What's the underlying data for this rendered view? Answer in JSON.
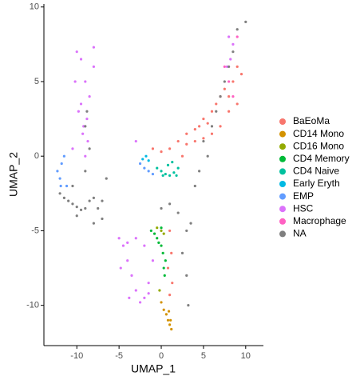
{
  "chart_data": {
    "type": "scatter",
    "xlabel": "UMAP_1",
    "ylabel": "UMAP_2",
    "xlim": [
      -13.9,
      12.1
    ],
    "ylim": [
      -12.7,
      10.2
    ],
    "xticks": [
      -10,
      -5,
      0,
      5,
      10
    ],
    "yticks": [
      -10,
      -5,
      0,
      5,
      10
    ],
    "legend": "right",
    "series": [
      {
        "name": "BaEoMa",
        "color": "#F8766D",
        "x": [
          -1,
          0,
          1,
          2,
          3,
          4,
          4.5,
          5,
          5.5,
          6,
          6.5,
          7,
          7.5,
          8,
          8.5,
          9,
          9.5,
          3,
          4,
          5,
          6,
          7,
          1,
          1.2,
          0.8,
          1.3,
          1,
          9,
          8,
          2.5
        ],
        "values": [
          0.5,
          0.3,
          0.5,
          1,
          1.5,
          1.8,
          2,
          2.5,
          2.2,
          3,
          3.5,
          4,
          4.5,
          4,
          5,
          6,
          5.5,
          0.8,
          1,
          1.2,
          1.5,
          2,
          -5,
          -6.5,
          -7.5,
          -8.5,
          -9.3,
          3.5,
          3,
          0
        ]
      },
      {
        "name": "CD14 Mono",
        "color": "#D39200",
        "x": [
          0,
          0.3,
          0.6,
          0.8,
          1,
          1.2,
          1.1,
          0.9
        ],
        "values": [
          -9.8,
          -10.3,
          -10.6,
          -11,
          -11.3,
          -11.6,
          -11,
          -10.4
        ]
      },
      {
        "name": "CD16 Mono",
        "color": "#93AA00",
        "x": [
          -0.5,
          0,
          0.3,
          -0.2
        ],
        "values": [
          -4.8,
          -5,
          -5.2,
          -9
        ]
      },
      {
        "name": "CD4 Memory",
        "color": "#00BA38",
        "x": [
          -1.2,
          -0.8,
          -0.5,
          0,
          0.2,
          0.5,
          0.3,
          -0.3,
          0,
          0.4
        ],
        "values": [
          -5,
          -5.2,
          -5.5,
          -6,
          -6.5,
          -7,
          -7.5,
          -5.8,
          -4.8,
          -8
        ]
      },
      {
        "name": "CD4 Naive",
        "color": "#00C19F",
        "x": [
          -0.5,
          0,
          0.5,
          1,
          1.5,
          2,
          0.8,
          1.3,
          0.2,
          1.8
        ],
        "values": [
          -0.8,
          -1,
          -1.2,
          -1.3,
          -1.1,
          -0.8,
          -0.6,
          -0.4,
          -1.3,
          -1.3
        ]
      },
      {
        "name": "Early Eryth",
        "color": "#00B9E3",
        "x": [
          -2.2,
          -1.8,
          -1.5
        ],
        "values": [
          -0.2,
          0,
          -0.3
        ]
      },
      {
        "name": "EMP",
        "color": "#619CFF",
        "x": [
          -12.3,
          -12,
          -11.8,
          -11.5,
          -11.2,
          -11.9,
          -2.5,
          -2,
          -1.5,
          -1
        ],
        "values": [
          -1,
          -1.5,
          -0.5,
          0,
          -2,
          -2,
          -0.5,
          -0.8,
          -1,
          -1.2
        ]
      },
      {
        "name": "HSC",
        "color": "#DB72FB",
        "x": [
          -10,
          -9.5,
          -9,
          -8.5,
          -8,
          -9.8,
          -9.2,
          -8.7,
          -8,
          -10.2,
          -9.5,
          -8.8,
          -9,
          -9.3,
          -10.5,
          -5,
          -4.5,
          -4,
          -3.5,
          -3,
          -2.5,
          -2,
          -1.5,
          -1,
          -4,
          -3,
          -2,
          -1.5,
          -4.8,
          -3.8,
          8,
          8.5,
          8.2,
          7.8,
          -3
        ],
        "values": [
          7,
          6.5,
          5,
          4,
          7.3,
          3,
          2,
          1,
          6,
          5,
          3.5,
          2.5,
          0,
          1.5,
          0.5,
          -5.5,
          -6,
          -7,
          -8,
          -9,
          -9.8,
          -9.5,
          -8.5,
          -7,
          -5.8,
          -5.5,
          -6,
          -9.2,
          -7.5,
          -9.5,
          8,
          7.5,
          6.5,
          6,
          1
        ]
      },
      {
        "name": "Macrophage",
        "color": "#FF61C3",
        "x": [
          8,
          8.5,
          9,
          7.5
        ],
        "values": [
          5,
          4,
          8,
          6
        ]
      },
      {
        "name": "NA",
        "color": "#7F7F7F",
        "x": [
          -12,
          -11.5,
          -11,
          -10.5,
          -10,
          -9.5,
          -9,
          -8.5,
          -8,
          -7.5,
          -7,
          -9,
          -8.5,
          -9,
          -8.8,
          -10,
          -8,
          -7,
          -6.5,
          -10.5,
          0,
          1,
          2,
          3,
          2.5,
          3,
          3.2,
          3.5,
          4,
          4.5,
          5,
          5.5,
          6,
          6.5,
          7,
          7.5,
          8,
          8.5,
          9,
          10
        ],
        "values": [
          -2.5,
          -2.8,
          -3,
          -3.2,
          -3.4,
          -3.6,
          -3.5,
          -3,
          -2.8,
          -3.5,
          -4.2,
          -1,
          0.5,
          2,
          3,
          -4,
          -4.5,
          -3,
          -1.5,
          -2,
          -3.5,
          -3.2,
          -3.8,
          -5,
          -6.5,
          -8,
          -10,
          -4.5,
          -2,
          -1,
          1,
          0,
          2,
          3,
          4,
          5,
          6,
          7,
          8.5,
          9
        ]
      }
    ]
  }
}
